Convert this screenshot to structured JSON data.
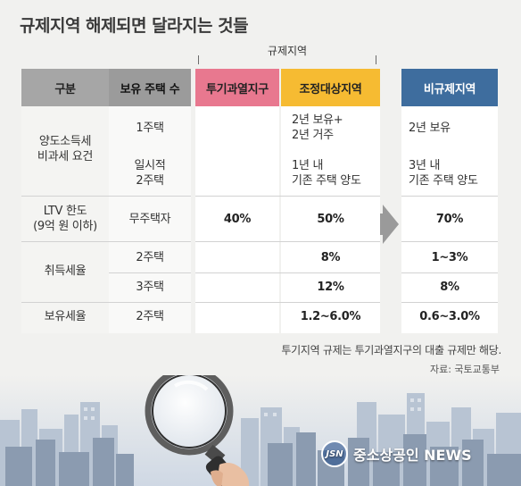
{
  "title": "규제지역 해제되면 달라지는 것들",
  "group_label": "규제지역",
  "headers": {
    "gubun": "구분",
    "holding": "보유 주택 수",
    "tugi": "투기과열지구",
    "jojeong": "조정대상지역",
    "bigyuje": "비규제지역"
  },
  "colors": {
    "tugi": "#e8788f",
    "jojeong": "#f6bb32",
    "bigyuje": "#3e6d9e",
    "header_gray": "#a6a6a6"
  },
  "rows": {
    "yangdo": {
      "category_line1": "양도소득세",
      "category_line2": "비과세 요건",
      "r1_holding": "1주택",
      "r1_jo_line1": "2년 보유+",
      "r1_jo_line2": "2년 거주",
      "r1_bi": "2년 보유",
      "r2_holding_line1": "일시적",
      "r2_holding_line2": "2주택",
      "r2_jo_line1": "1년 내",
      "r2_jo_line2": "기존 주택 양도",
      "r2_bi_line1": "3년 내",
      "r2_bi_line2": "기존 주택 양도"
    },
    "ltv": {
      "category_line1": "LTV 한도",
      "category_line2": "(9억 원 이하)",
      "holding": "무주택자",
      "tugi": "40%",
      "jo": "50%",
      "bi": "70%"
    },
    "chwideuk": {
      "category": "취득세율",
      "r1_holding": "2주택",
      "r1_jo": "8%",
      "r1_bi": "1~3%",
      "r2_holding": "3주택",
      "r2_jo": "12%",
      "r2_bi": "8%"
    },
    "boyu": {
      "category": "보유세율",
      "holding": "2주택",
      "jo": "1.2~6.0%",
      "bi": "0.6~3.0%"
    }
  },
  "note": "투기지역 규제는 투기과열지구의 대출 규제만 해당.",
  "source": "자료: 국토교통부",
  "logo_mark": "JSN",
  "logo_text": "중소상공인 NEWS"
}
